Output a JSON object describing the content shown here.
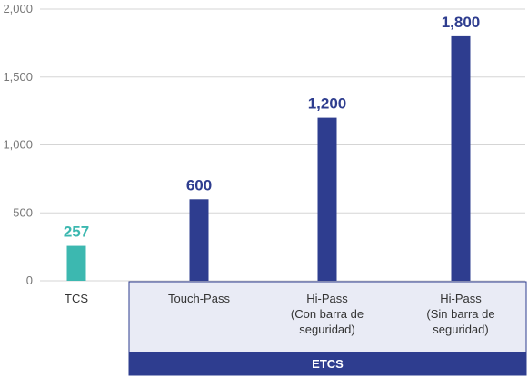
{
  "chart_data": {
    "type": "bar",
    "title": "",
    "xlabel": "",
    "ylabel": "",
    "ylim": [
      0,
      2000
    ],
    "yticks": [
      {
        "value": 0,
        "label": "0"
      },
      {
        "value": 500,
        "label": "500"
      },
      {
        "value": 1000,
        "label": "1,000"
      },
      {
        "value": 1500,
        "label": "1,500"
      },
      {
        "value": 2000,
        "label": "2,000"
      }
    ],
    "grid": true,
    "bars": [
      {
        "category": [
          "TCS"
        ],
        "value": 257,
        "label": "257",
        "color": "#3cb8b0",
        "group": ""
      },
      {
        "category": [
          "Touch-Pass"
        ],
        "value": 600,
        "label": "600",
        "color": "#2e3d8f",
        "group": "ETCS"
      },
      {
        "category": [
          "Hi-Pass",
          "(Con barra de",
          "seguridad)"
        ],
        "value": 1200,
        "label": "1,200",
        "color": "#2e3d8f",
        "group": "ETCS"
      },
      {
        "category": [
          "Hi-Pass",
          "(Sin barra de",
          "seguridad)"
        ],
        "value": 1800,
        "label": "1,800",
        "color": "#2e3d8f",
        "group": "ETCS"
      }
    ],
    "group_label": "ETCS",
    "colors": {
      "group_panel": "#e9ebf5",
      "group_border": "#2e3d8f",
      "group_band": "#2e3d8f",
      "grid": "#d5d5d5"
    }
  }
}
